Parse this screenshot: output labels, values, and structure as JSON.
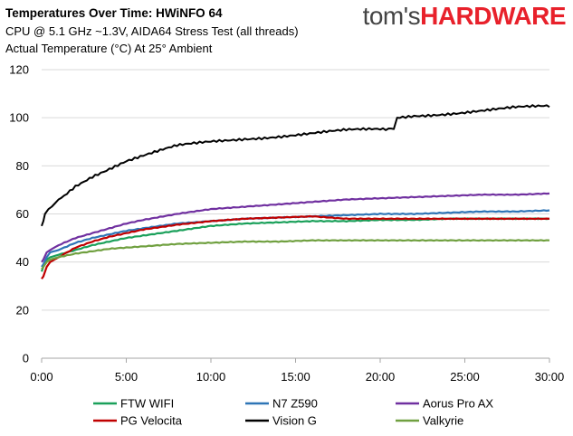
{
  "header": {
    "title": "Temperatures Over Time: HWiNFO 64",
    "subtitle1": "CPU @ 5.1 GHz ~1.3V, AIDA64 Stress Test (all threads)",
    "subtitle2": "Actual Temperature (°C) At 25° Ambient"
  },
  "logo": {
    "part1": "tom's",
    "part2": "HARDWARE"
  },
  "chart_data": {
    "type": "line",
    "title": "Temperatures Over Time: HWiNFO 64",
    "subtitle": [
      "CPU @ 5.1 GHz ~1.3V, AIDA64 Stress Test (all threads)",
      "Actual Temperature (°C) At 25° Ambient"
    ],
    "xlabel": "",
    "ylabel": "",
    "xlim": [
      0,
      30
    ],
    "ylim": [
      0,
      120
    ],
    "x_ticks": [
      "0:00",
      "5:00",
      "10:00",
      "15:00",
      "20:00",
      "25:00",
      "30:00"
    ],
    "y_ticks": [
      "0",
      "20",
      "40",
      "60",
      "80",
      "100",
      "120"
    ],
    "grid": "horizontal",
    "legend_position": "bottom",
    "x_units": "minutes",
    "series": [
      {
        "name": "FTW WIFI",
        "color": "#1aa05a",
        "x": [
          0,
          0.1,
          0.3,
          0.5,
          1,
          2,
          3,
          4,
          5,
          6,
          8,
          10,
          12,
          14,
          16,
          18,
          20,
          22,
          24,
          26,
          28,
          30
        ],
        "y": [
          36,
          38,
          41,
          42,
          43,
          45,
          47,
          48.5,
          50,
          51,
          53,
          55,
          56,
          56.5,
          57,
          57,
          57.5,
          57.5,
          58,
          58,
          58,
          58
        ]
      },
      {
        "name": "N7 Z590",
        "color": "#2e75b6",
        "x": [
          0,
          0.1,
          0.3,
          0.5,
          1,
          2,
          3,
          4,
          5,
          6,
          8,
          10,
          12,
          14,
          16,
          18,
          20,
          22,
          24,
          26,
          28,
          30
        ],
        "y": [
          38,
          39,
          42,
          44,
          45,
          48,
          50,
          51.5,
          53,
          54,
          56,
          57,
          58,
          58.5,
          59,
          59.5,
          60,
          60,
          60.5,
          61,
          61,
          61.5
        ]
      },
      {
        "name": "Aorus Pro AX",
        "color": "#7030a0",
        "x": [
          0,
          0.1,
          0.3,
          0.5,
          1,
          2,
          3,
          4,
          5,
          6,
          8,
          10,
          12,
          14,
          16,
          18,
          20,
          22,
          24,
          26,
          28,
          30
        ],
        "y": [
          40,
          41,
          44,
          45,
          47,
          50,
          52,
          54,
          56,
          57.5,
          60,
          62,
          63,
          64,
          65,
          66,
          66.5,
          67,
          67.5,
          68,
          68,
          68.5
        ]
      },
      {
        "name": "PG Velocita",
        "color": "#c00000",
        "x": [
          0,
          0.1,
          0.3,
          0.5,
          1,
          2,
          3,
          4,
          5,
          6,
          8,
          10,
          12,
          14,
          16,
          18,
          20,
          22,
          24,
          26,
          28,
          30
        ],
        "y": [
          33,
          34,
          38,
          40,
          42,
          46,
          48.5,
          50.5,
          52,
          53.5,
          55.5,
          57,
          58,
          58.5,
          59,
          58,
          58,
          58,
          58,
          58,
          58,
          58
        ]
      },
      {
        "name": "Vision G",
        "color": "#000000",
        "x": [
          0,
          0.1,
          0.2,
          0.4,
          0.6,
          1,
          1.5,
          2,
          3,
          4,
          5,
          6,
          7,
          8,
          10,
          12,
          14,
          16,
          18,
          20,
          20.5,
          20.8,
          21,
          22,
          24,
          26,
          28,
          30
        ],
        "y": [
          55,
          57,
          60,
          62,
          63,
          66,
          69,
          72,
          76,
          79,
          82,
          84,
          86,
          88,
          90,
          91.5,
          92.5,
          93.5,
          94.5,
          95,
          95,
          96,
          100,
          101,
          102,
          103,
          104,
          104.5
        ]
      },
      {
        "name": "Valkyrie",
        "color": "#70a040",
        "x": [
          0,
          0.1,
          0.3,
          0.5,
          1,
          2,
          3,
          4,
          5,
          6,
          8,
          10,
          12,
          14,
          16,
          18,
          20,
          22,
          24,
          26,
          28,
          30
        ],
        "y": [
          37,
          38,
          40,
          41,
          42,
          43.5,
          44.5,
          45.5,
          46,
          46.5,
          47.5,
          48,
          48.5,
          48.5,
          49,
          49,
          49,
          49,
          49,
          49,
          49,
          49
        ]
      }
    ]
  }
}
